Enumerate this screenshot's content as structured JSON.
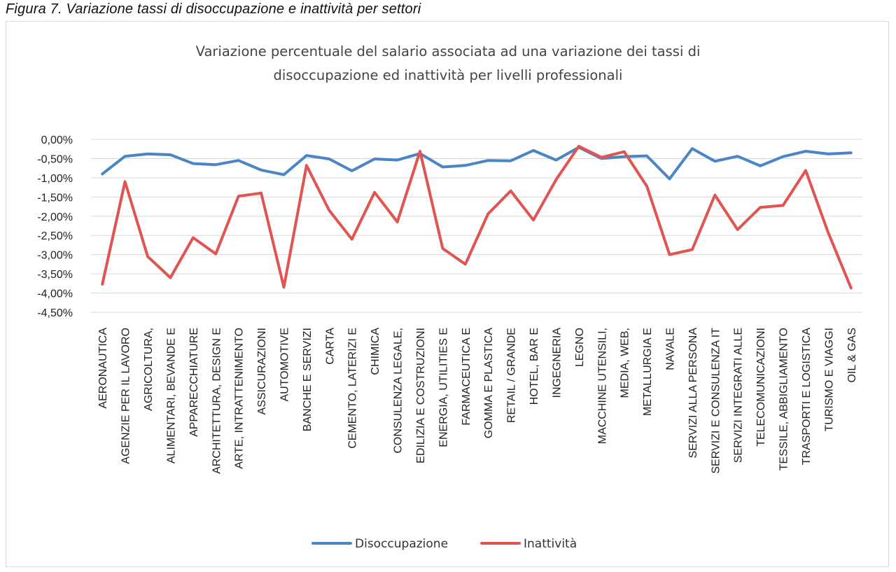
{
  "figure_caption": "Figura 7. Variazione tassi di disoccupazione e inattività per settori",
  "chart_data": {
    "type": "line",
    "title": "Variazione percentuale del salario associata ad una variazione dei tassi di disoccupazione ed inattività per livelli professionali",
    "title_lines": [
      "Variazione percentuale del salario associata ad una variazione dei tassi di",
      "disoccupazione ed inattività per livelli professionali"
    ],
    "xlabel": "",
    "ylabel": "",
    "ylim": [
      -4.5,
      0
    ],
    "y_ticks": [
      0,
      -0.5,
      -1,
      -1.5,
      -2,
      -2.5,
      -3,
      -3.5,
      -4,
      -4.5
    ],
    "y_tick_labels": [
      "0,00%",
      "-0,50%",
      "-1,00%",
      "-1,50%",
      "-2,00%",
      "-2,50%",
      "-3,00%",
      "-3,50%",
      "-4,00%",
      "-4,50%"
    ],
    "grid": true,
    "legend_position": "bottom",
    "categories": [
      "AERONAUTICA",
      "AGENZIE PER IL LAVORO",
      "AGRICOLTURA,",
      "ALIMENTARI, BEVANDE E",
      "APPARECCHIATURE",
      "ARCHITETTURA, DESIGN E",
      "ARTE, INTRATTENIMENTO",
      "ASSICURAZIONI",
      "AUTOMOTIVE",
      "BANCHE E SERVIZI",
      "CARTA",
      "CEMENTO, LATERIZI E",
      "CHIMICA",
      "CONSULENZA LEGALE,",
      "EDILIZIA E COSTRUZIONI",
      "ENERGIA, UTILITIES E",
      "FARMACEUTICA E",
      "GOMMA E PLASTICA",
      "RETAIL / GRANDE",
      "HOTEL, BAR E",
      "INGEGNERIA",
      "LEGNO",
      "MACCHINE UTENSILI,",
      "MEDIA, WEB,",
      "METALLURGIA E",
      "NAVALE",
      "SERVIZI ALLA PERSONA",
      "SERVIZI E CONSULENZA IT",
      "SERVIZI INTEGRATI ALLE",
      "TELECOMUNICAZIONI",
      "TESSILE, ABBIGLIAMENTO",
      "TRASPORTI E LOGISTICA",
      "TURISMO E VIAGGI",
      "OIL & GAS"
    ],
    "series": [
      {
        "name": "Disoccupazione",
        "color": "#4a86c5",
        "values": [
          -0.9,
          -0.44,
          -0.38,
          -0.4,
          -0.63,
          -0.66,
          -0.55,
          -0.8,
          -0.92,
          -0.42,
          -0.51,
          -0.82,
          -0.51,
          -0.54,
          -0.37,
          -0.72,
          -0.68,
          -0.55,
          -0.56,
          -0.29,
          -0.54,
          -0.21,
          -0.5,
          -0.45,
          -0.43,
          -1.03,
          -0.24,
          -0.57,
          -0.44,
          -0.69,
          -0.45,
          -0.31,
          -0.38,
          -0.35
        ]
      },
      {
        "name": "Inattività",
        "color": "#e05451",
        "values": [
          -3.77,
          -1.1,
          -3.05,
          -3.6,
          -2.56,
          -2.98,
          -1.48,
          -1.4,
          -3.85,
          -0.68,
          -1.85,
          -2.6,
          -1.38,
          -2.15,
          -0.31,
          -2.84,
          -3.25,
          -1.94,
          -1.34,
          -2.1,
          -1.05,
          -0.18,
          -0.47,
          -0.32,
          -1.22,
          -3.0,
          -2.87,
          -1.45,
          -2.35,
          -1.77,
          -1.72,
          -0.81,
          -2.44,
          -3.87
        ]
      }
    ]
  }
}
